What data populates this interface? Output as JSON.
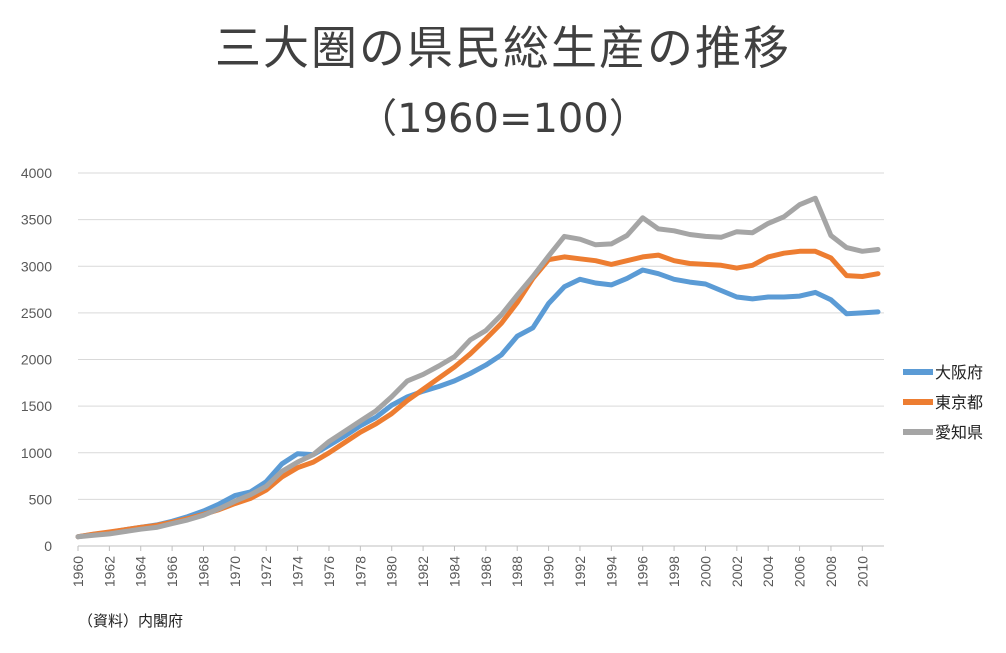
{
  "title": "三大圏の県民総生産の推移",
  "subtitle": "（1960=100）",
  "source": "（資料）内閣府",
  "chart_data": {
    "type": "line",
    "title": "三大圏の県民総生産の推移",
    "subtitle": "（1960=100）",
    "xlabel": "",
    "ylabel": "",
    "ylim": [
      0,
      4000
    ],
    "yticks": [
      0,
      500,
      1000,
      1500,
      2000,
      2500,
      3000,
      3500,
      4000
    ],
    "xticks": [
      1960,
      1962,
      1964,
      1966,
      1968,
      1970,
      1972,
      1974,
      1976,
      1978,
      1980,
      1982,
      1984,
      1986,
      1988,
      1990,
      1992,
      1994,
      1996,
      1998,
      2000,
      2002,
      2004,
      2006,
      2008,
      2010
    ],
    "grid": true,
    "legend_position": "right",
    "x": [
      1960,
      1961,
      1962,
      1963,
      1964,
      1965,
      1966,
      1967,
      1968,
      1969,
      1970,
      1971,
      1972,
      1973,
      1974,
      1975,
      1976,
      1977,
      1978,
      1979,
      1980,
      1981,
      1982,
      1983,
      1984,
      1985,
      1986,
      1987,
      1988,
      1989,
      1990,
      1991,
      1992,
      1993,
      1994,
      1995,
      1996,
      1997,
      1998,
      1999,
      2000,
      2001,
      2002,
      2003,
      2004,
      2005,
      2006,
      2007,
      2008,
      2009,
      2010,
      2011
    ],
    "series": [
      {
        "name": "大阪府",
        "color": "#5B9BD5",
        "values": [
          100,
          125,
          145,
          175,
          200,
          225,
          265,
          315,
          375,
          450,
          540,
          580,
          690,
          880,
          990,
          980,
          1080,
          1180,
          1290,
          1380,
          1510,
          1600,
          1660,
          1710,
          1770,
          1850,
          1940,
          2050,
          2250,
          2340,
          2600,
          2780,
          2860,
          2820,
          2800,
          2870,
          2960,
          2920,
          2860,
          2830,
          2810,
          2740,
          2670,
          2650,
          2670,
          2670,
          2680,
          2720,
          2640,
          2490,
          2500,
          2510
        ]
      },
      {
        "name": "東京都",
        "color": "#ED7D31",
        "values": [
          100,
          128,
          150,
          175,
          200,
          220,
          255,
          295,
          340,
          390,
          455,
          510,
          600,
          740,
          840,
          900,
          1000,
          1110,
          1220,
          1310,
          1420,
          1560,
          1680,
          1800,
          1920,
          2060,
          2220,
          2390,
          2610,
          2870,
          3070,
          3100,
          3080,
          3060,
          3020,
          3060,
          3100,
          3120,
          3060,
          3030,
          3020,
          3010,
          2980,
          3010,
          3100,
          3140,
          3160,
          3160,
          3090,
          2900,
          2890,
          2920
        ]
      },
      {
        "name": "愛知県",
        "color": "#A5A5A5",
        "values": [
          100,
          115,
          130,
          155,
          180,
          200,
          240,
          280,
          330,
          400,
          480,
          550,
          640,
          800,
          900,
          980,
          1120,
          1230,
          1340,
          1450,
          1600,
          1770,
          1840,
          1930,
          2030,
          2210,
          2310,
          2480,
          2690,
          2890,
          3110,
          3320,
          3290,
          3230,
          3240,
          3330,
          3520,
          3400,
          3380,
          3340,
          3320,
          3310,
          3370,
          3360,
          3460,
          3530,
          3660,
          3730,
          3330,
          3200,
          3160,
          3180
        ]
      }
    ]
  }
}
